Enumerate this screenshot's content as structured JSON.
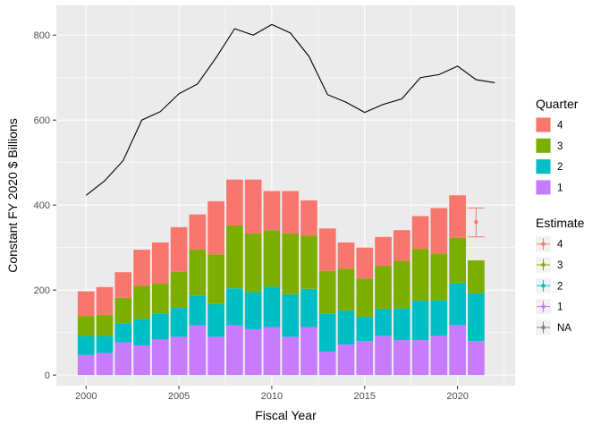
{
  "chart_data": {
    "type": "bar",
    "xlabel": "Fiscal Year",
    "ylabel": "Constant FY 2020 $ Billions",
    "xlim": [
      1998.4,
      2023.1
    ],
    "ylim": [
      -25,
      870
    ],
    "x_ticks": [
      2000,
      2005,
      2010,
      2015,
      2020
    ],
    "y_ticks": [
      0,
      200,
      400,
      600,
      800
    ],
    "grid": true,
    "stacked_bars": {
      "x": [
        2000,
        2001,
        2002,
        2003,
        2004,
        2005,
        2006,
        2007,
        2008,
        2009,
        2010,
        2011,
        2012,
        2013,
        2014,
        2015,
        2016,
        2017,
        2018,
        2019,
        2020,
        2021
      ],
      "series": [
        {
          "name": "1",
          "color": "#C77CFF",
          "values": [
            47,
            52,
            77,
            70,
            83,
            90,
            117,
            90,
            117,
            108,
            113,
            90,
            113,
            55,
            72,
            80,
            92,
            82,
            82,
            93,
            118,
            80
          ]
        },
        {
          "name": "2",
          "color": "#00BFC4",
          "values": [
            45,
            40,
            45,
            62,
            62,
            68,
            70,
            77,
            87,
            87,
            95,
            100,
            90,
            90,
            80,
            57,
            63,
            75,
            93,
            83,
            98,
            112
          ]
        },
        {
          "name": "3",
          "color": "#7CAE00",
          "values": [
            47,
            50,
            60,
            78,
            70,
            85,
            108,
            117,
            148,
            138,
            133,
            143,
            125,
            100,
            98,
            90,
            102,
            112,
            122,
            110,
            107,
            78
          ]
        },
        {
          "name": "4",
          "color": "#F8766D",
          "values": [
            58,
            65,
            60,
            85,
            97,
            105,
            83,
            125,
            108,
            127,
            92,
            100,
            83,
            100,
            62,
            73,
            68,
            72,
            77,
            107,
            100,
            0
          ]
        }
      ]
    },
    "line": {
      "x": [
        2000,
        2001,
        2002,
        2003,
        2004,
        2005,
        2006,
        2007,
        2008,
        2009,
        2010,
        2011,
        2012,
        2013,
        2014,
        2015,
        2016,
        2017,
        2018,
        2019,
        2020,
        2021,
        2022
      ],
      "values": [
        423,
        457,
        505,
        600,
        620,
        662,
        685,
        747,
        815,
        800,
        825,
        805,
        750,
        660,
        642,
        618,
        637,
        650,
        700,
        707,
        727,
        695,
        688
      ],
      "color": "#000000"
    },
    "estimate_point": {
      "x": 2021,
      "value": 360,
      "ymin": 325,
      "ymax": 393,
      "estimate": "4",
      "color": "#F8766D"
    },
    "legends": [
      {
        "title": "Quarter",
        "placement": "right",
        "kind": "fill",
        "entries": [
          {
            "label": "4",
            "color": "#F8766D"
          },
          {
            "label": "3",
            "color": "#7CAE00"
          },
          {
            "label": "2",
            "color": "#00BFC4"
          },
          {
            "label": "1",
            "color": "#C77CFF"
          }
        ]
      },
      {
        "title": "Estimate",
        "placement": "right",
        "kind": "point",
        "entries": [
          {
            "label": "4",
            "color": "#F8766D"
          },
          {
            "label": "3",
            "color": "#7CAE00"
          },
          {
            "label": "2",
            "color": "#00BFC4"
          },
          {
            "label": "1",
            "color": "#C77CFF"
          },
          {
            "label": "NA",
            "color": "#7F7F7F"
          }
        ]
      }
    ]
  }
}
